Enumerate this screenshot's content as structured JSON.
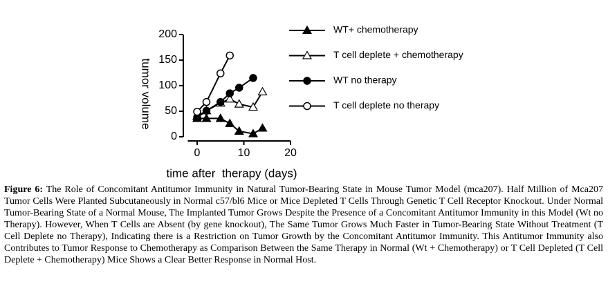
{
  "chart_data": {
    "type": "line",
    "x_label": "time after  therapy (days)",
    "y_label": "tumor volume",
    "xlim": [
      -2,
      20
    ],
    "xticks": [
      0,
      10,
      20
    ],
    "ylim": [
      0,
      200
    ],
    "yticks": [
      0,
      50,
      100,
      150,
      200
    ],
    "series": [
      {
        "name": "WT+ chemotherapy",
        "color": "#000000",
        "marker": "triangle",
        "filled": true,
        "x": [
          0,
          2,
          5,
          7,
          9,
          12,
          14
        ],
        "values": [
          36,
          36,
          36,
          26,
          11,
          6,
          17
        ]
      },
      {
        "name": "T cell deplete + chemotherapy",
        "color": "#000000",
        "marker": "triangle",
        "filled": false,
        "x": [
          0,
          2,
          5,
          7,
          9,
          12,
          14
        ],
        "values": [
          40,
          51,
          66,
          74,
          64,
          58,
          88
        ]
      },
      {
        "name": "WT no therapy",
        "color": "#000000",
        "marker": "circle",
        "filled": true,
        "x": [
          0,
          2,
          5,
          7,
          9,
          12
        ],
        "values": [
          38,
          51,
          68,
          85,
          96,
          115
        ]
      },
      {
        "name": "T cell deplete no therapy",
        "color": "#000000",
        "marker": "circle",
        "filled": false,
        "x": [
          0,
          2,
          5,
          7
        ],
        "values": [
          49,
          68,
          124,
          159
        ]
      }
    ]
  },
  "caption": {
    "label": "Figure 6:",
    "text": "The Role of Concomitant Antitumor Immunity in Natural Tumor-Bearing State in Mouse Tumor Model (mca207). Half Million of Mca207 Tumor Cells Were Planted Subcutaneously in Normal c57/bl6 Mice or Mice Depleted T Cells Through Genetic T Cell Receptor Knockout. Under Normal Tumor-Bearing State of a Normal Mouse, The Implanted Tumor Grows Despite the Presence of a Concomitant Antitumor Immunity in this Model (Wt no Therapy). However, When T Cells are Absent (by gene knockout), The Same Tumor Grows Much Faster in Tumor-Bearing State Without Treatment (T Cell Deplete no Therapy), Indicating there is a Restriction on Tumor Growth by the Concomitant Antitumor Immunity. This Antitumor Immunity also Contributes to Tumor Response to Chemotherapy as Comparison Between the Same Therapy in Normal (Wt + Chemotherapy) or T Cell Depleted (T Cell Deplete + Chemotherapy) Mice Shows a Clear Better Response in Normal Host."
  }
}
